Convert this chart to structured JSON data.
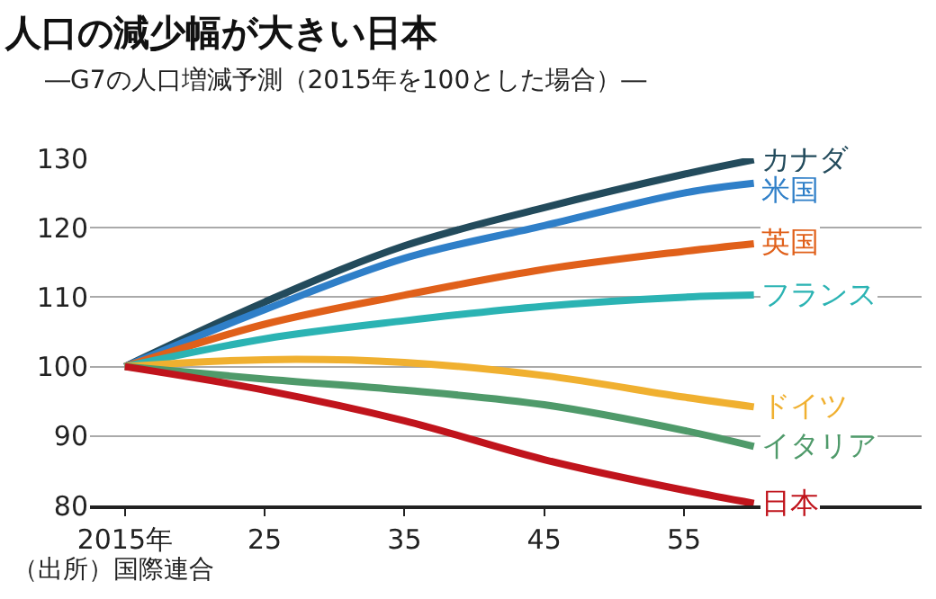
{
  "chart_data": {
    "type": "line",
    "title": "人口の減少幅が大きい日本",
    "subtitle": "―G7の人口増減予測（2015年を100とした場合）―",
    "x": [
      2015,
      2025,
      2035,
      2045,
      2055,
      2060
    ],
    "series": [
      {
        "name": "カナダ",
        "color": "#234b5c",
        "values": [
          100,
          109.3,
          117.4,
          122.9,
          127.7,
          129.8
        ]
      },
      {
        "name": "米国",
        "color": "#2f7fc8",
        "values": [
          100,
          108.2,
          115.6,
          120.3,
          125,
          126.4
        ]
      },
      {
        "name": "英国",
        "color": "#e0601a",
        "values": [
          100,
          106.1,
          110.3,
          114,
          116.6,
          117.7
        ]
      },
      {
        "name": "フランス",
        "color": "#2bb3b3",
        "values": [
          100,
          104,
          106.6,
          108.7,
          110,
          110.3
        ]
      },
      {
        "name": "ドイツ",
        "color": "#f0b030",
        "values": [
          100,
          101,
          100.6,
          98.7,
          95.6,
          94.2
        ]
      },
      {
        "name": "イタリア",
        "color": "#4f9a6a",
        "values": [
          100,
          98.2,
          96.6,
          94.5,
          90.8,
          88.5
        ]
      },
      {
        "name": "日本",
        "color": "#c0141c",
        "values": [
          100,
          96.6,
          92.2,
          86.6,
          82.2,
          80.3
        ]
      }
    ],
    "xlim": [
      2012.5,
      2072
    ],
    "xticks": [
      {
        "value": 2015,
        "label": "2015年"
      },
      {
        "value": 2025,
        "label": "25"
      },
      {
        "value": 2035,
        "label": "35"
      },
      {
        "value": 2045,
        "label": "45"
      },
      {
        "value": 2055,
        "label": "55"
      }
    ],
    "ylim": [
      80,
      130
    ],
    "yticks": [
      80,
      90,
      100,
      110,
      120,
      130
    ],
    "grid": "y",
    "legend": false,
    "marker": "none",
    "line_style": "solid",
    "annotations": [
      "（出所）国際連合"
    ]
  }
}
